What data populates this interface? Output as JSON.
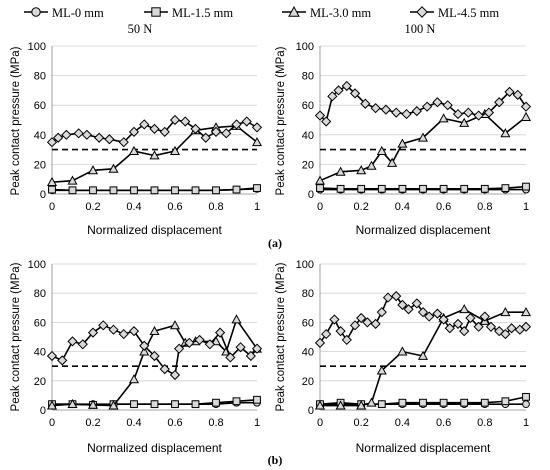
{
  "legend": {
    "items": [
      {
        "label": "ML-0 mm",
        "marker": "circle"
      },
      {
        "label": "ML-1.5 mm",
        "marker": "square"
      },
      {
        "label": "ML-3.0 mm",
        "marker": "triangle"
      },
      {
        "label": "ML-4.5 mm",
        "marker": "diamond"
      }
    ]
  },
  "panel_labels": [
    "(a)",
    "(b)"
  ],
  "colors": {
    "series": "#000000",
    "marker_fill": "#d9d9d9",
    "grid": "#d0d0d0",
    "reference": "#000000"
  },
  "chart_data": [
    {
      "type": "line",
      "title": "50 N",
      "xlabel": "Normalized displacement",
      "ylabel": "Peak contact pressure (MPa)",
      "xlim": [
        0,
        1
      ],
      "ylim": [
        0,
        100
      ],
      "xticks": [
        0,
        0.2,
        0.4,
        0.6,
        0.8,
        1
      ],
      "yticks": [
        0,
        20,
        40,
        60,
        80,
        100
      ],
      "xtick_labels": [
        "0",
        "0.2",
        "0.4",
        "0.6",
        "0.8",
        "1"
      ],
      "ytick_labels": [
        "0",
        "20",
        "40",
        "60",
        "80",
        "100"
      ],
      "grid": "horizontal",
      "reference_line": {
        "y": 30,
        "style": "dashed"
      },
      "series": [
        {
          "name": "ML-0 mm",
          "marker": "circle",
          "x": [
            0,
            0.1,
            0.2,
            0.3,
            0.4,
            0.5,
            0.6,
            0.7,
            0.8,
            0.9,
            1.0
          ],
          "y": [
            2.5,
            2.5,
            2.5,
            2.5,
            2.5,
            2.5,
            2.5,
            2.5,
            2.5,
            3,
            3.5
          ]
        },
        {
          "name": "ML-1.5 mm",
          "marker": "square",
          "x": [
            0,
            0.1,
            0.2,
            0.3,
            0.4,
            0.5,
            0.6,
            0.7,
            0.8,
            0.9,
            1.0
          ],
          "y": [
            3,
            2.5,
            2.5,
            2.5,
            2.5,
            2.5,
            2.5,
            2.5,
            2.5,
            3,
            4
          ]
        },
        {
          "name": "ML-3.0 mm",
          "marker": "triangle",
          "x": [
            0,
            0.1,
            0.2,
            0.3,
            0.4,
            0.5,
            0.6,
            0.7,
            0.8,
            0.9,
            1.0
          ],
          "y": [
            8,
            9,
            16,
            17,
            29,
            26,
            29,
            43,
            45,
            46,
            35
          ]
        },
        {
          "name": "ML-4.5 mm",
          "marker": "diamond",
          "x": [
            0,
            0.03,
            0.07,
            0.13,
            0.17,
            0.23,
            0.28,
            0.35,
            0.4,
            0.45,
            0.5,
            0.55,
            0.6,
            0.65,
            0.7,
            0.75,
            0.8,
            0.85,
            0.9,
            0.95,
            1.0
          ],
          "y": [
            35,
            38,
            40,
            41,
            40,
            38,
            37,
            35,
            42,
            47,
            44,
            42,
            50,
            49,
            44,
            38,
            42,
            41,
            47,
            49,
            45
          ]
        }
      ]
    },
    {
      "type": "line",
      "title": "100 N",
      "xlabel": "Normalized displacement",
      "ylabel": "Peak contact pressure (MPa)",
      "xlim": [
        0,
        1
      ],
      "ylim": [
        0,
        100
      ],
      "xticks": [
        0,
        0.2,
        0.4,
        0.6,
        0.8,
        1
      ],
      "yticks": [
        0,
        20,
        40,
        60,
        80,
        100
      ],
      "xtick_labels": [
        "0",
        "0.2",
        "0.4",
        "0.6",
        "0.8",
        "1"
      ],
      "ytick_labels": [
        "0",
        "20",
        "40",
        "60",
        "80",
        "100"
      ],
      "grid": "horizontal",
      "reference_line": {
        "y": 30,
        "style": "dashed"
      },
      "series": [
        {
          "name": "ML-0 mm",
          "marker": "circle",
          "x": [
            0,
            0.1,
            0.2,
            0.3,
            0.4,
            0.5,
            0.6,
            0.7,
            0.8,
            0.9,
            1.0
          ],
          "y": [
            3,
            3,
            3,
            3,
            3,
            3,
            3,
            3,
            3,
            3,
            3
          ]
        },
        {
          "name": "ML-1.5 mm",
          "marker": "square",
          "x": [
            0,
            0.1,
            0.2,
            0.3,
            0.4,
            0.5,
            0.6,
            0.7,
            0.8,
            0.9,
            1.0
          ],
          "y": [
            4,
            3.5,
            3.5,
            3.5,
            3.5,
            3.5,
            3.5,
            3.5,
            3.5,
            4,
            5
          ]
        },
        {
          "name": "ML-3.0 mm",
          "marker": "triangle",
          "x": [
            0,
            0.1,
            0.2,
            0.25,
            0.3,
            0.35,
            0.4,
            0.5,
            0.6,
            0.7,
            0.8,
            0.9,
            1.0
          ],
          "y": [
            9,
            15,
            16,
            19,
            29,
            21,
            34,
            38,
            51,
            48,
            54,
            41,
            52
          ]
        },
        {
          "name": "ML-4.5 mm",
          "marker": "diamond",
          "x": [
            0,
            0.03,
            0.06,
            0.09,
            0.13,
            0.17,
            0.22,
            0.27,
            0.32,
            0.37,
            0.42,
            0.47,
            0.52,
            0.57,
            0.62,
            0.67,
            0.72,
            0.77,
            0.82,
            0.87,
            0.92,
            0.96,
            1.0
          ],
          "y": [
            53,
            49,
            66,
            70,
            73,
            68,
            61,
            58,
            57,
            55,
            54,
            56,
            59,
            62,
            60,
            54,
            55,
            53,
            55,
            62,
            69,
            67,
            59
          ]
        }
      ]
    },
    {
      "type": "line",
      "title": "",
      "xlabel": "Normalized displacement",
      "ylabel": "Peak contact pressure (MPa)",
      "xlim": [
        0,
        1
      ],
      "ylim": [
        0,
        100
      ],
      "xticks": [
        0,
        0.2,
        0.4,
        0.6,
        0.8,
        1
      ],
      "yticks": [
        0,
        20,
        40,
        60,
        80,
        100
      ],
      "xtick_labels": [
        "0",
        "0.2",
        "0.4",
        "0.6",
        "0.8",
        "1"
      ],
      "ytick_labels": [
        "0",
        "20",
        "40",
        "60",
        "80",
        "100"
      ],
      "grid": "horizontal",
      "reference_line": {
        "y": 30,
        "style": "dashed"
      },
      "series": [
        {
          "name": "ML-0 mm",
          "marker": "circle",
          "x": [
            0,
            0.1,
            0.2,
            0.3,
            0.4,
            0.5,
            0.6,
            0.7,
            0.8,
            0.9,
            1.0
          ],
          "y": [
            4,
            4,
            4,
            4,
            4,
            4,
            4,
            4,
            4,
            5,
            5
          ]
        },
        {
          "name": "ML-1.5 mm",
          "marker": "square",
          "x": [
            0,
            0.1,
            0.2,
            0.3,
            0.4,
            0.5,
            0.6,
            0.7,
            0.8,
            0.9,
            1.0
          ],
          "y": [
            4,
            4,
            3.5,
            4,
            4,
            4,
            4,
            4,
            5,
            6,
            7
          ]
        },
        {
          "name": "ML-3.0 mm",
          "marker": "triangle",
          "x": [
            0,
            0.1,
            0.2,
            0.3,
            0.4,
            0.45,
            0.5,
            0.6,
            0.65,
            0.7,
            0.8,
            0.85,
            0.9,
            1.0
          ],
          "y": [
            3,
            4,
            3.5,
            3,
            21,
            40,
            54,
            58,
            46,
            47,
            47,
            40,
            62,
            42
          ]
        },
        {
          "name": "ML-4.5 mm",
          "marker": "diamond",
          "x": [
            0,
            0.05,
            0.1,
            0.15,
            0.2,
            0.25,
            0.3,
            0.35,
            0.4,
            0.45,
            0.5,
            0.55,
            0.6,
            0.62,
            0.67,
            0.72,
            0.77,
            0.82,
            0.87,
            0.92,
            0.97,
            1.0
          ],
          "y": [
            37,
            34,
            47,
            45,
            53,
            58,
            55,
            52,
            54,
            44,
            37,
            28,
            24,
            42,
            46,
            48,
            45,
            53,
            36,
            43,
            37,
            42
          ]
        }
      ]
    },
    {
      "type": "line",
      "title": "",
      "xlabel": "Normalized displacement",
      "ylabel": "Peak contact pressure (MPa)",
      "xlim": [
        0,
        1
      ],
      "ylim": [
        0,
        100
      ],
      "xticks": [
        0,
        0.2,
        0.4,
        0.6,
        0.8,
        1
      ],
      "yticks": [
        0,
        20,
        40,
        60,
        80,
        100
      ],
      "xtick_labels": [
        "0",
        "0.2",
        "0.4",
        "0.6",
        "0.8",
        "1"
      ],
      "ytick_labels": [
        "0",
        "20",
        "40",
        "60",
        "80",
        "100"
      ],
      "grid": "horizontal",
      "reference_line": {
        "y": 30,
        "style": "dashed"
      },
      "series": [
        {
          "name": "ML-0 mm",
          "marker": "circle",
          "x": [
            0,
            0.1,
            0.2,
            0.3,
            0.4,
            0.5,
            0.6,
            0.7,
            0.8,
            0.9,
            1.0
          ],
          "y": [
            4,
            4,
            4,
            4,
            4,
            4,
            4,
            4,
            4,
            4,
            4
          ]
        },
        {
          "name": "ML-1.5 mm",
          "marker": "square",
          "x": [
            0,
            0.1,
            0.2,
            0.3,
            0.4,
            0.5,
            0.6,
            0.7,
            0.8,
            0.9,
            1.0
          ],
          "y": [
            4,
            5,
            4,
            4,
            5,
            5,
            5,
            5,
            5,
            6,
            9
          ]
        },
        {
          "name": "ML-3.0 mm",
          "marker": "triangle",
          "x": [
            0,
            0.1,
            0.2,
            0.25,
            0.3,
            0.4,
            0.5,
            0.6,
            0.7,
            0.8,
            0.9,
            1.0
          ],
          "y": [
            3,
            3,
            3,
            5,
            27,
            40,
            37,
            63,
            69,
            61,
            67,
            67
          ]
        },
        {
          "name": "ML-4.5 mm",
          "marker": "diamond",
          "x": [
            0,
            0.03,
            0.07,
            0.1,
            0.13,
            0.17,
            0.2,
            0.23,
            0.27,
            0.3,
            0.33,
            0.37,
            0.4,
            0.43,
            0.47,
            0.5,
            0.53,
            0.57,
            0.6,
            0.63,
            0.67,
            0.7,
            0.73,
            0.77,
            0.8,
            0.83,
            0.87,
            0.9,
            0.93,
            0.97,
            1.0
          ],
          "y": [
            46,
            52,
            62,
            54,
            48,
            58,
            63,
            60,
            59,
            67,
            77,
            78,
            72,
            69,
            73,
            67,
            64,
            66,
            62,
            56,
            59,
            54,
            63,
            57,
            64,
            57,
            54,
            52,
            56,
            55,
            57
          ]
        }
      ]
    }
  ]
}
